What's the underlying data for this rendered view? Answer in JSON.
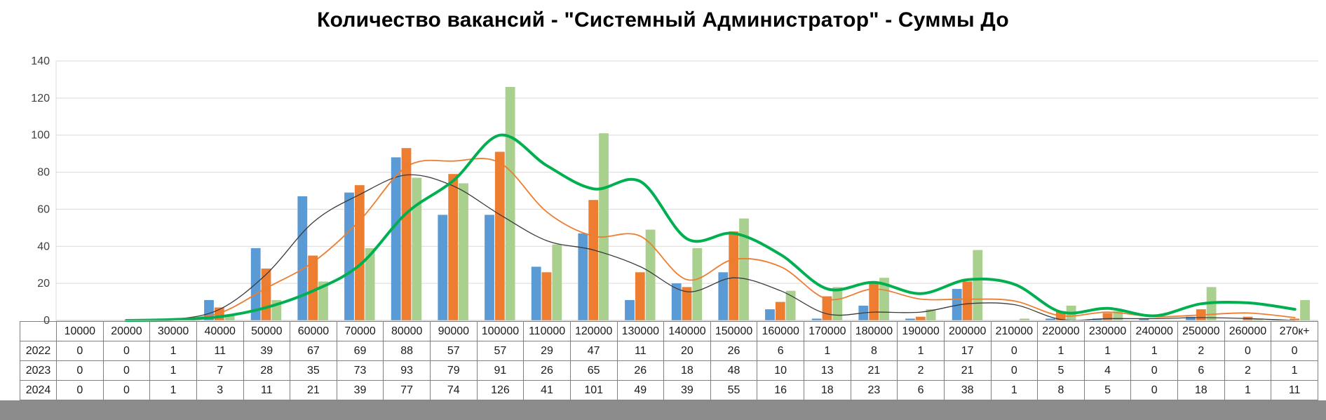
{
  "chart_data": {
    "type": "bar",
    "title": "Количество вакансий - \"Системный Администратор\" - Суммы До",
    "categories": [
      "10000",
      "20000",
      "30000",
      "40000",
      "50000",
      "60000",
      "70000",
      "80000",
      "90000",
      "100000",
      "110000",
      "120000",
      "130000",
      "140000",
      "150000",
      "160000",
      "170000",
      "180000",
      "190000",
      "200000",
      "210000",
      "220000",
      "230000",
      "240000",
      "250000",
      "260000",
      "270к+"
    ],
    "series": [
      {
        "name": "2022",
        "color": "#5B9BD5",
        "values": [
          0,
          0,
          1,
          11,
          39,
          67,
          69,
          88,
          57,
          57,
          29,
          47,
          11,
          20,
          26,
          6,
          1,
          8,
          1,
          17,
          0,
          1,
          1,
          1,
          2,
          0,
          0
        ]
      },
      {
        "name": "2023",
        "color": "#ED7D31",
        "values": [
          0,
          0,
          1,
          7,
          28,
          35,
          73,
          93,
          79,
          91,
          26,
          65,
          26,
          18,
          48,
          10,
          13,
          21,
          2,
          21,
          0,
          5,
          4,
          0,
          6,
          2,
          1
        ]
      },
      {
        "name": "2024",
        "color": "#A9D08E",
        "values": [
          0,
          0,
          1,
          3,
          11,
          21,
          39,
          77,
          74,
          126,
          41,
          101,
          49,
          39,
          55,
          16,
          18,
          23,
          6,
          38,
          1,
          8,
          5,
          0,
          18,
          1,
          11
        ]
      }
    ],
    "trendlines": [
      {
        "series": "2022",
        "type": "moving-average",
        "period": 2,
        "color": "#3B3B3B",
        "width": 1.3
      },
      {
        "series": "2023",
        "type": "moving-average",
        "period": 2,
        "color": "#ED7D31",
        "width": 1.8
      },
      {
        "series": "2024",
        "type": "moving-average",
        "period": 2,
        "color": "#00B050",
        "width": 4
      }
    ],
    "ylim": [
      0,
      140
    ],
    "ytick_step": 20,
    "yticks": [
      0,
      20,
      40,
      60,
      80,
      100,
      120,
      140
    ],
    "grid": true,
    "legend": "none",
    "data_table_shown": true,
    "colors": {
      "background": "#FFFFFF",
      "grid": "#D9D9D9",
      "axis_line": "#BFBFBF",
      "axis_text": "#404040",
      "table_border": "#808080",
      "table_text": "#1A1A1A",
      "title_text": "#000000",
      "bottom_strip": "#8C8C8C"
    }
  }
}
